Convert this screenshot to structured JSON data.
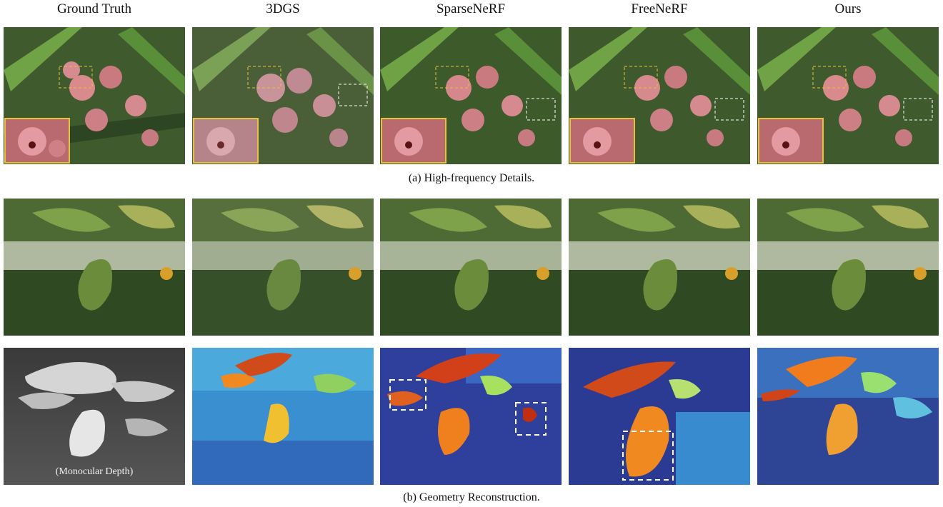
{
  "columns": [
    "Ground Truth",
    "3DGS",
    "SparseNeRF",
    "FreeNeRF",
    "Ours"
  ],
  "caption_a": "(a) High-frequency Details.",
  "caption_b": "(b) Geometry Reconstruction.",
  "depth_label": "(Monocular Depth)",
  "colors": {
    "inset_border": "#e8c040",
    "box_dashed": "#ffffff",
    "box_yellow_dashed": "#e8c040"
  }
}
